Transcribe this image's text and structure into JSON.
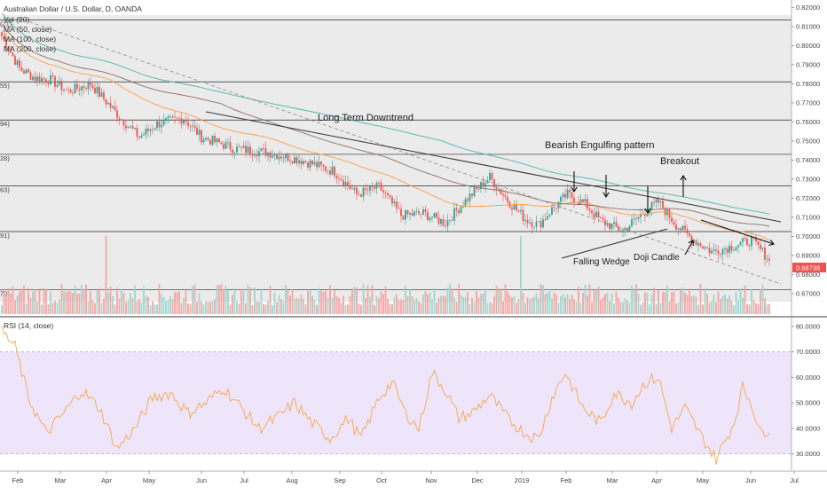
{
  "chart_data": {
    "type": "candlestick",
    "title": "Australian Dollar / U.S. Dollar, D, OANDA",
    "legend": [
      "Vol (20)",
      "MA (50, close)",
      "MA (100, close)",
      "MA (200, close)"
    ],
    "legend_display": [
      "Vol (20)",
      "MA (50, close)",
      "MA (100, close)",
      "MA (200, close)"
    ],
    "price_axis": {
      "ylim": [
        0.6625,
        0.8225
      ],
      "ticks": [
        "0.82000",
        "0.81000",
        "0.80000",
        "0.79000",
        "0.78000",
        "0.77000",
        "0.76000",
        "0.75000",
        "0.74000",
        "0.73000",
        "0.72000",
        "0.71000",
        "0.70000",
        "0.69000",
        "0.68000",
        "0.67000"
      ],
      "current_price": "0.68738",
      "current_value": 0.68738
    },
    "left_level_labels": [
      "(21)",
      "55)",
      "94)",
      "28)",
      "63)",
      "91)",
      "70)"
    ],
    "horizontal_levels": [
      0.8135,
      0.781,
      0.761,
      0.743,
      0.7265,
      0.7025,
      0.672
    ],
    "x_axis": {
      "months": [
        "Feb",
        "Mar",
        "Apr",
        "May",
        "Jun",
        "Jul",
        "Aug",
        "Sep",
        "Oct",
        "Nov",
        "Dec",
        "2019",
        "Feb",
        "Mar",
        "Apr",
        "May",
        "Jun",
        "Jul"
      ]
    },
    "close_keypoints": [
      [
        0,
        0.805
      ],
      [
        8,
        0.788
      ],
      [
        15,
        0.783
      ],
      [
        22,
        0.782
      ],
      [
        30,
        0.776
      ],
      [
        40,
        0.78
      ],
      [
        52,
        0.764
      ],
      [
        62,
        0.752
      ],
      [
        70,
        0.759
      ],
      [
        82,
        0.762
      ],
      [
        90,
        0.752
      ],
      [
        105,
        0.746
      ],
      [
        120,
        0.744
      ],
      [
        135,
        0.74
      ],
      [
        150,
        0.734
      ],
      [
        160,
        0.722
      ],
      [
        170,
        0.726
      ],
      [
        180,
        0.711
      ],
      [
        190,
        0.712
      ],
      [
        200,
        0.707
      ],
      [
        210,
        0.72
      ],
      [
        220,
        0.731
      ],
      [
        228,
        0.719
      ],
      [
        236,
        0.709
      ],
      [
        242,
        0.706
      ],
      [
        248,
        0.714
      ],
      [
        255,
        0.722
      ],
      [
        263,
        0.717
      ],
      [
        270,
        0.708
      ],
      [
        280,
        0.703
      ],
      [
        290,
        0.713
      ],
      [
        296,
        0.718
      ],
      [
        304,
        0.706
      ],
      [
        312,
        0.698
      ],
      [
        320,
        0.692
      ],
      [
        330,
        0.695
      ],
      [
        338,
        0.698
      ],
      [
        346,
        0.688
      ]
    ],
    "annotations": [
      "Long Term Downtrend",
      "Bearish Engulfing pattern",
      "Breakout",
      "Falling Wedge",
      "Doji Candle"
    ],
    "indicator": {
      "name": "RSI (14, close)",
      "ylim": [
        25,
        82
      ],
      "ticks": [
        "80.0000",
        "70.0000",
        "60.0000",
        "50.0000",
        "40.0000",
        "30.0000"
      ],
      "band": [
        30,
        70
      ],
      "keypoints": [
        [
          0,
          78
        ],
        [
          6,
          72
        ],
        [
          12,
          52
        ],
        [
          20,
          38
        ],
        [
          28,
          46
        ],
        [
          36,
          55
        ],
        [
          44,
          48
        ],
        [
          52,
          32
        ],
        [
          60,
          40
        ],
        [
          68,
          52
        ],
        [
          76,
          54
        ],
        [
          84,
          46
        ],
        [
          92,
          50
        ],
        [
          100,
          56
        ],
        [
          108,
          48
        ],
        [
          116,
          40
        ],
        [
          124,
          44
        ],
        [
          132,
          50
        ],
        [
          140,
          42
        ],
        [
          148,
          36
        ],
        [
          156,
          44
        ],
        [
          162,
          36
        ],
        [
          170,
          52
        ],
        [
          176,
          58
        ],
        [
          182,
          46
        ],
        [
          188,
          40
        ],
        [
          194,
          62
        ],
        [
          200,
          55
        ],
        [
          206,
          44
        ],
        [
          212,
          46
        ],
        [
          220,
          53
        ],
        [
          228,
          44
        ],
        [
          236,
          38
        ],
        [
          242,
          36
        ],
        [
          248,
          52
        ],
        [
          254,
          62
        ],
        [
          262,
          48
        ],
        [
          270,
          42
        ],
        [
          276,
          54
        ],
        [
          284,
          50
        ],
        [
          290,
          58
        ],
        [
          296,
          60
        ],
        [
          302,
          40
        ],
        [
          308,
          48
        ],
        [
          316,
          36
        ],
        [
          322,
          28
        ],
        [
          330,
          42
        ],
        [
          334,
          56
        ],
        [
          338,
          50
        ],
        [
          342,
          38
        ],
        [
          346,
          40
        ]
      ]
    }
  }
}
